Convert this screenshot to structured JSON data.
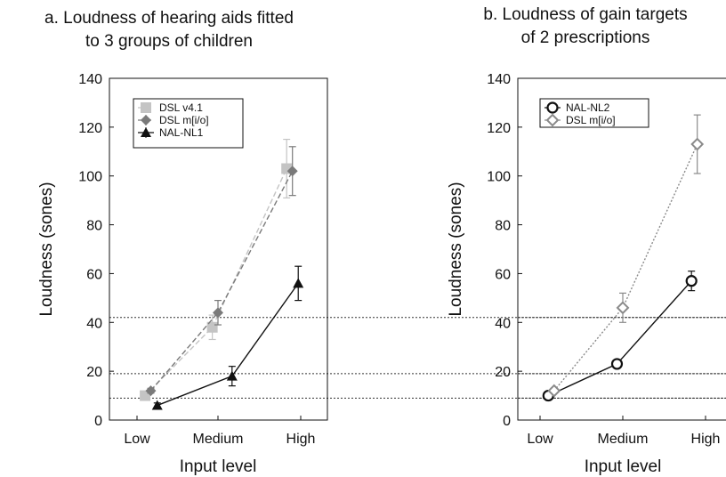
{
  "chart_data": [
    {
      "type": "line",
      "title": "a. Loudness of hearing aids fitted to 3 groups of children",
      "title_lines": [
        "a. Loudness of hearing aids fitted",
        "to 3 groups of children"
      ],
      "xlabel": "Input level",
      "ylabel": "Loudness (sones)",
      "categories": [
        "Low",
        "Medium",
        "High"
      ],
      "ylim": [
        0,
        140
      ],
      "yticks": [
        "0",
        "20",
        "40",
        "60",
        "80",
        "100",
        "120",
        "140"
      ],
      "legend_position": "top-left",
      "reference_lines": [
        9,
        19,
        42
      ],
      "series": [
        {
          "name": "DSL v4.1",
          "color": "#c4c4c4",
          "marker": "square",
          "line": "dashed",
          "x": [
            1.1,
            1.93,
            2.83
          ],
          "y": [
            10,
            38,
            103
          ],
          "err": [
            1,
            5,
            12
          ]
        },
        {
          "name": "DSL m[i/o]",
          "color": "#7a7a7a",
          "marker": "diamond",
          "line": "dashed",
          "x": [
            1.17,
            2.0,
            2.9
          ],
          "y": [
            12,
            44,
            102
          ],
          "err": [
            1,
            5,
            10
          ]
        },
        {
          "name": "NAL-NL1",
          "color": "#111111",
          "marker": "triangle",
          "line": "solid",
          "x": [
            1.25,
            2.17,
            2.97
          ],
          "y": [
            6,
            18,
            56
          ],
          "err": [
            1,
            4,
            7
          ]
        }
      ]
    },
    {
      "type": "line",
      "title": "b. Loudness of gain targets of 2 prescriptions",
      "title_lines": [
        "b. Loudness of gain targets",
        "of 2 prescriptions"
      ],
      "xlabel": "Input level",
      "ylabel": "Loudness (sones)",
      "categories": [
        "Low",
        "Medium",
        "High"
      ],
      "ylim": [
        0,
        140
      ],
      "yticks": [
        "0",
        "20",
        "40",
        "60",
        "80",
        "100",
        "120",
        "140"
      ],
      "legend_position": "top-left",
      "reference_lines": [
        9,
        19,
        42
      ],
      "series": [
        {
          "name": "NAL-NL2",
          "color": "#111111",
          "marker": "circle",
          "line": "solid",
          "x": [
            1.1,
            1.93,
            2.83
          ],
          "y": [
            10,
            23,
            57
          ],
          "err": [
            1,
            1,
            4
          ]
        },
        {
          "name": "DSL m[i/o]",
          "color": "#8a8a8a",
          "marker": "open-diamond",
          "line": "dotted",
          "x": [
            1.17,
            2.0,
            2.9
          ],
          "y": [
            12,
            46,
            113
          ],
          "err": [
            1,
            6,
            12
          ]
        }
      ]
    }
  ]
}
